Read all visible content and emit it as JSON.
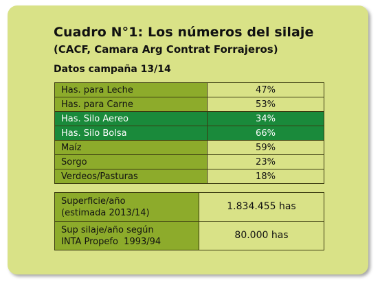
{
  "title": "Cuadro N°1: Los números del silaje",
  "subtitle": "(CACF, Camara Arg Contrat Forrajeros)",
  "season": "Datos campaña 13/14",
  "rows": [
    {
      "label": "Has. para Leche",
      "value": "47%"
    },
    {
      "label": "Has. para Carne",
      "value": "53%"
    },
    {
      "label": "Has. Silo Aereo",
      "value": "34%"
    },
    {
      "label": "Has. Silo Bolsa",
      "value": "66%"
    },
    {
      "label": "Maíz",
      "value": "59%"
    },
    {
      "label": "Sorgo",
      "value": "23%"
    },
    {
      "label": "Verdeos/Pasturas",
      "value": "18%"
    }
  ],
  "summary": [
    {
      "label_line1": "Superficie/año",
      "label_line2": "(estimada 2013/14)",
      "value": "1.834.455 has"
    },
    {
      "label_line1": "Sup silaje/año según",
      "label_line2": "INTA Propefo  1993/94",
      "value": "80.000 has"
    }
  ],
  "colors": {
    "panel": "#d9e287",
    "label_cell": "#8dab2b",
    "highlight": "#1a8a3b"
  }
}
